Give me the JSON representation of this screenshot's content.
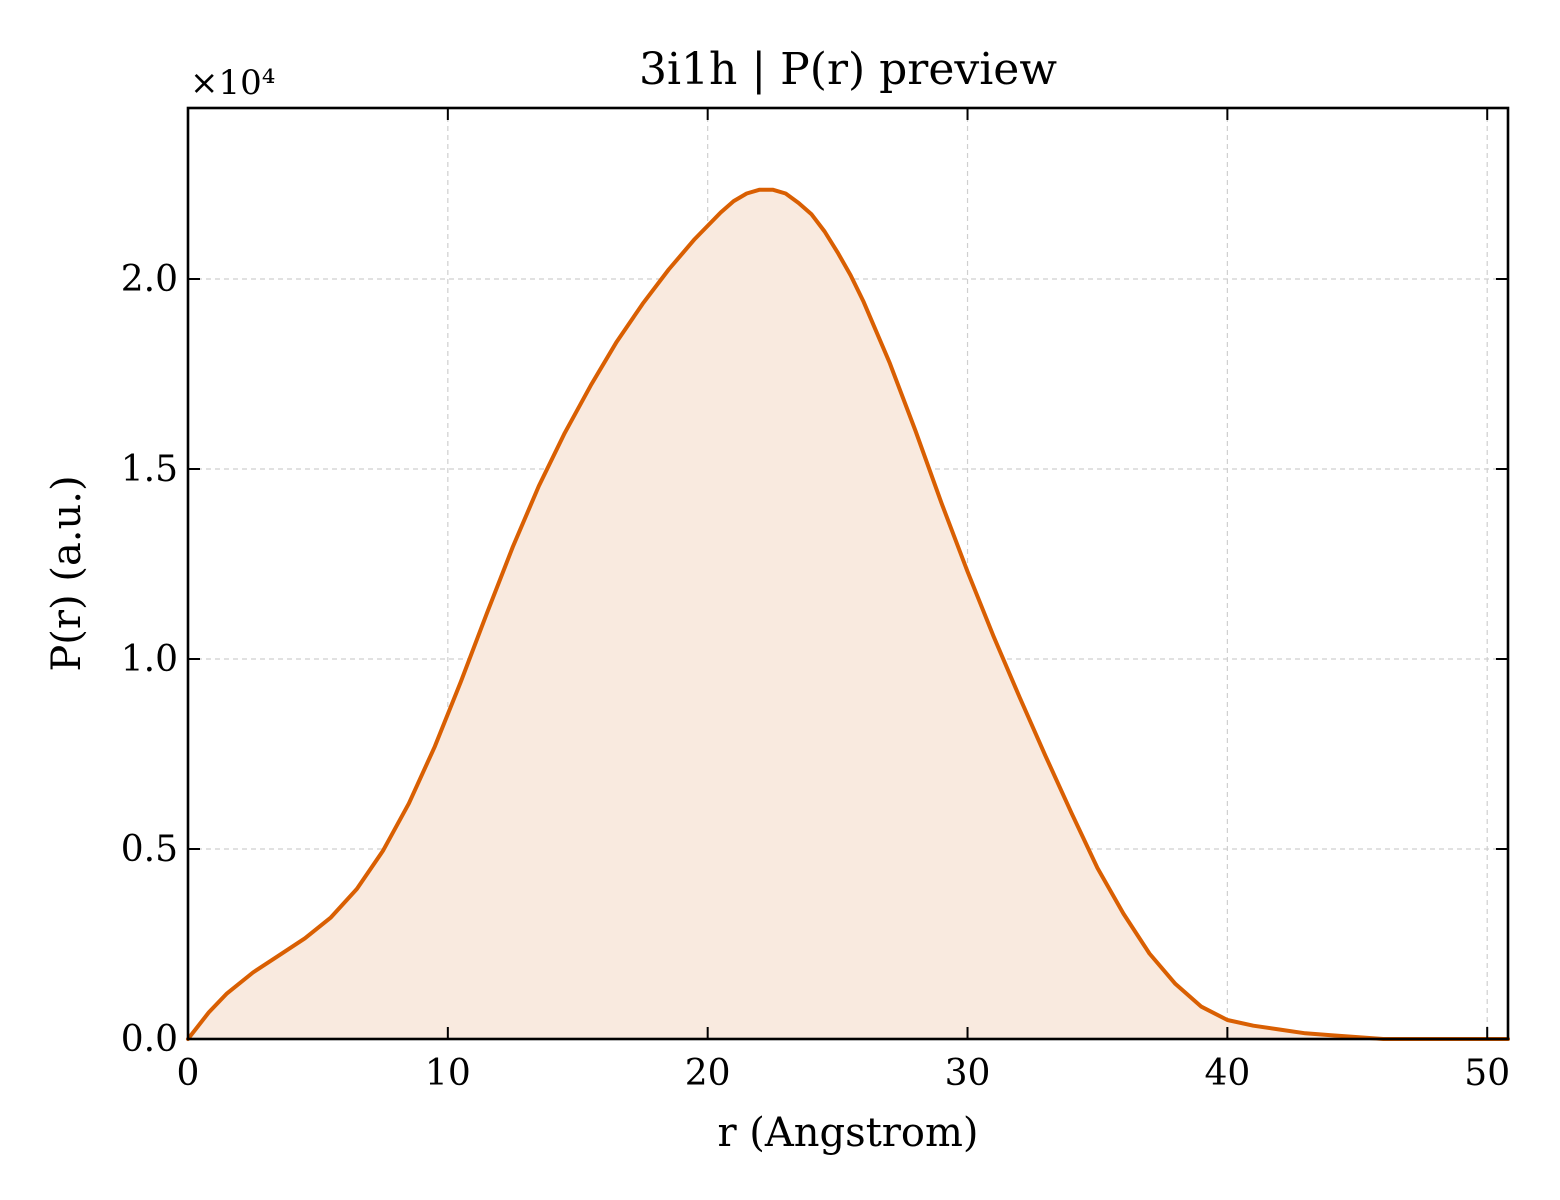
{
  "chart_data": {
    "type": "area",
    "title": "3i1h | P(r) preview",
    "xlabel": "r (Angstrom)",
    "ylabel": "P(r) (a.u.)",
    "y_offset_text": "×10⁴",
    "y_scale": 10000,
    "xlim": [
      0,
      50.8
    ],
    "ylim": [
      0,
      24500
    ],
    "xticks": [
      0,
      10,
      20,
      30,
      40,
      50
    ],
    "xtick_labels": [
      "0",
      "10",
      "20",
      "30",
      "40",
      "50"
    ],
    "yticks": [
      0,
      5000,
      10000,
      15000,
      20000
    ],
    "ytick_labels": [
      "0.0",
      "0.5",
      "1.0",
      "1.5",
      "2.0"
    ],
    "grid": true,
    "line_color": "#d95f02",
    "fill_color": "#f9eadf",
    "series": [
      {
        "x": [
          0,
          0.8,
          1.5,
          2.5,
          3.5,
          4.5,
          5.5,
          6.5,
          7.5,
          8.5,
          9.5,
          10.5,
          11.5,
          12.5,
          13.5,
          14.5,
          15.5,
          16.5,
          17.5,
          18.5,
          19.5,
          20.5,
          21.0,
          21.5,
          22.0,
          22.5,
          23.0,
          23.5,
          24.0,
          24.5,
          25.0,
          25.5,
          26.0,
          27.0,
          28.0,
          29.0,
          30.0,
          31.0,
          32.0,
          33.0,
          34.0,
          35.0,
          36.0,
          37.0,
          38.0,
          39.0,
          40.0,
          41.0,
          42.0,
          43.0,
          44.0,
          45.0,
          46.0,
          47.0,
          48.0,
          49.0,
          50.0,
          50.8
        ],
        "y": [
          0,
          700,
          1200,
          1750,
          2200,
          2650,
          3200,
          3950,
          4950,
          6200,
          7700,
          9400,
          11200,
          12950,
          14550,
          15950,
          17200,
          18350,
          19350,
          20250,
          21050,
          21750,
          22050,
          22250,
          22350,
          22350,
          22250,
          22000,
          21700,
          21250,
          20700,
          20100,
          19400,
          17800,
          16000,
          14100,
          12300,
          10600,
          9000,
          7450,
          5950,
          4500,
          3300,
          2250,
          1450,
          850,
          500,
          350,
          250,
          150,
          100,
          50,
          0,
          0,
          0,
          0,
          0,
          0
        ]
      }
    ]
  }
}
